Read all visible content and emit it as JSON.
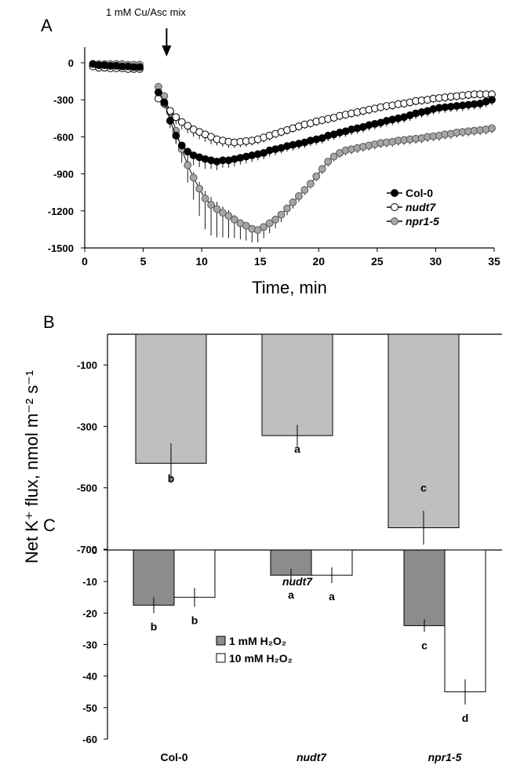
{
  "figure": {
    "y_axis_title": "Net K⁺ flux, nmol m⁻² s⁻¹",
    "colors": {
      "col0": "#000000",
      "nudt7": "#ffffff",
      "npr1": "#a6a6a6",
      "barB": "#bfbfbf",
      "bar1mM": "#8c8c8c",
      "bar10mM": "#ffffff"
    }
  },
  "chart_data": [
    {
      "panel": "A",
      "type": "line",
      "xlabel": "Time, min",
      "xlim": [
        0,
        35
      ],
      "ylim": [
        -1500,
        0
      ],
      "xticks": [
        "0",
        "5",
        "10",
        "15",
        "20",
        "25",
        "30",
        "35"
      ],
      "yticks": [
        "0",
        "-300",
        "-600",
        "-900",
        "-1200",
        "-1500"
      ],
      "annotation": "1 mM Cu/Asc mix",
      "annotation_x": 7,
      "legend_position": "right",
      "series": [
        {
          "name": "Col-0",
          "italic": false,
          "x": [
            0.7,
            1.2,
            1.7,
            2.2,
            2.7,
            3.2,
            3.7,
            4.2,
            4.7,
            6.3,
            6.8,
            7.3,
            7.8,
            8.3,
            8.8,
            9.3,
            9.8,
            10.3,
            10.8,
            11.3,
            11.8,
            12.3,
            12.8,
            13.3,
            13.8,
            14.3,
            14.8,
            15.3,
            15.8,
            16.3,
            16.8,
            17.3,
            17.8,
            18.3,
            18.8,
            19.3,
            19.8,
            20.3,
            20.8,
            21.3,
            21.8,
            22.3,
            22.8,
            23.3,
            23.8,
            24.3,
            24.8,
            25.3,
            25.8,
            26.3,
            26.8,
            27.3,
            27.8,
            28.3,
            28.8,
            29.3,
            29.8,
            30.3,
            30.8,
            31.3,
            31.8,
            32.3,
            32.8,
            33.3,
            33.8,
            34.3,
            34.8
          ],
          "y": [
            -10,
            -20,
            -20,
            -25,
            -25,
            -30,
            -30,
            -35,
            -35,
            -240,
            -320,
            -470,
            -590,
            -670,
            -720,
            -750,
            -765,
            -780,
            -790,
            -800,
            -790,
            -790,
            -780,
            -770,
            -760,
            -750,
            -740,
            -730,
            -710,
            -700,
            -690,
            -675,
            -665,
            -655,
            -645,
            -630,
            -620,
            -610,
            -590,
            -580,
            -565,
            -555,
            -540,
            -530,
            -520,
            -505,
            -495,
            -485,
            -470,
            -460,
            -450,
            -440,
            -425,
            -410,
            -400,
            -390,
            -375,
            -365,
            -360,
            -355,
            -350,
            -345,
            -340,
            -335,
            -330,
            -315,
            -300
          ],
          "err": [
            0,
            0,
            0,
            0,
            0,
            0,
            0,
            0,
            0,
            30,
            40,
            60,
            70,
            80,
            80,
            80,
            80,
            80,
            70,
            70,
            60,
            60,
            60,
            55,
            55,
            55,
            50,
            50,
            50,
            50,
            45,
            45,
            45,
            45,
            45,
            45,
            45,
            45,
            45,
            45,
            45,
            45,
            45,
            45,
            45,
            45,
            45,
            45,
            45,
            45,
            45,
            45,
            45,
            45,
            45,
            45,
            45,
            45,
            45,
            45,
            45,
            45,
            45,
            45,
            45,
            45,
            45
          ]
        },
        {
          "name": "nudt7",
          "italic": true,
          "x": [
            0.7,
            1.2,
            1.7,
            2.2,
            2.7,
            3.2,
            3.7,
            4.2,
            4.7,
            6.3,
            6.8,
            7.3,
            7.8,
            8.3,
            8.8,
            9.3,
            9.8,
            10.3,
            10.8,
            11.3,
            11.8,
            12.3,
            12.8,
            13.3,
            13.8,
            14.3,
            14.8,
            15.3,
            15.8,
            16.3,
            16.8,
            17.3,
            17.8,
            18.3,
            18.8,
            19.3,
            19.8,
            20.3,
            20.8,
            21.3,
            21.8,
            22.3,
            22.8,
            23.3,
            23.8,
            24.3,
            24.8,
            25.3,
            25.8,
            26.3,
            26.8,
            27.3,
            27.8,
            28.3,
            28.8,
            29.3,
            29.8,
            30.3,
            30.8,
            31.3,
            31.8,
            32.3,
            32.8,
            33.3,
            33.8,
            34.3,
            34.8
          ],
          "y": [
            -30,
            -40,
            -40,
            -45,
            -45,
            -45,
            -50,
            -50,
            -50,
            -290,
            -330,
            -390,
            -440,
            -480,
            -510,
            -540,
            -560,
            -580,
            -600,
            -620,
            -630,
            -640,
            -645,
            -640,
            -635,
            -630,
            -620,
            -605,
            -590,
            -575,
            -560,
            -545,
            -530,
            -515,
            -500,
            -490,
            -475,
            -465,
            -455,
            -445,
            -430,
            -420,
            -410,
            -400,
            -390,
            -380,
            -370,
            -360,
            -350,
            -345,
            -335,
            -330,
            -320,
            -310,
            -305,
            -300,
            -290,
            -285,
            -280,
            -275,
            -270,
            -265,
            -260,
            -255,
            -255,
            -255,
            -255
          ],
          "err": [
            0,
            0,
            0,
            0,
            0,
            0,
            0,
            0,
            0,
            30,
            40,
            50,
            60,
            60,
            60,
            60,
            60,
            60,
            60,
            50,
            50,
            50,
            45,
            45,
            45,
            40,
            40,
            40,
            40,
            35,
            35,
            35,
            35,
            35,
            35,
            35,
            35,
            35,
            35,
            35,
            35,
            35,
            35,
            35,
            35,
            35,
            35,
            35,
            35,
            35,
            35,
            35,
            35,
            35,
            35,
            35,
            35,
            35,
            35,
            35,
            35,
            35,
            35,
            35,
            35,
            35,
            35
          ]
        },
        {
          "name": "npr1-5",
          "italic": true,
          "x": [
            0.7,
            1.2,
            1.7,
            2.2,
            2.7,
            3.2,
            3.7,
            4.2,
            4.7,
            6.3,
            6.8,
            7.3,
            7.8,
            8.3,
            8.8,
            9.3,
            9.8,
            10.3,
            10.8,
            11.3,
            11.8,
            12.3,
            12.8,
            13.3,
            13.8,
            14.3,
            14.8,
            15.3,
            15.8,
            16.3,
            16.8,
            17.3,
            17.8,
            18.3,
            18.8,
            19.3,
            19.8,
            20.3,
            20.8,
            21.3,
            21.8,
            22.3,
            22.8,
            23.3,
            23.8,
            24.3,
            24.8,
            25.3,
            25.8,
            26.3,
            26.8,
            27.3,
            27.8,
            28.3,
            28.8,
            29.3,
            29.8,
            30.3,
            30.8,
            31.3,
            31.8,
            32.3,
            32.8,
            33.3,
            33.8,
            34.3,
            34.8
          ],
          "y": [
            -10,
            -10,
            -10,
            -10,
            -10,
            -10,
            -15,
            -15,
            -15,
            -195,
            -270,
            -400,
            -550,
            -700,
            -830,
            -930,
            -1020,
            -1100,
            -1150,
            -1185,
            -1215,
            -1240,
            -1270,
            -1300,
            -1320,
            -1345,
            -1355,
            -1330,
            -1300,
            -1270,
            -1230,
            -1180,
            -1130,
            -1080,
            -1030,
            -980,
            -920,
            -860,
            -800,
            -760,
            -730,
            -710,
            -700,
            -690,
            -680,
            -670,
            -660,
            -650,
            -645,
            -640,
            -630,
            -625,
            -620,
            -615,
            -610,
            -600,
            -595,
            -590,
            -580,
            -575,
            -565,
            -560,
            -555,
            -550,
            -545,
            -540,
            -530
          ],
          "err": [
            0,
            0,
            0,
            0,
            0,
            0,
            0,
            0,
            0,
            30,
            40,
            60,
            90,
            110,
            140,
            180,
            220,
            250,
            250,
            230,
            200,
            180,
            150,
            130,
            120,
            110,
            100,
            90,
            80,
            70,
            60,
            55,
            50,
            45,
            40,
            40,
            40,
            40,
            40,
            40,
            40,
            40,
            40,
            40,
            40,
            40,
            40,
            40,
            40,
            40,
            40,
            40,
            40,
            40,
            40,
            40,
            40,
            40,
            40,
            40,
            40,
            40,
            40,
            40,
            40,
            40,
            40
          ]
        }
      ]
    },
    {
      "panel": "B",
      "type": "bar",
      "categories": [
        "Col-0",
        "nudt7",
        "npr1-5"
      ],
      "category_italic": [
        false,
        true,
        true
      ],
      "values": [
        -420,
        -330,
        -630
      ],
      "err": [
        65,
        35,
        55
      ],
      "letters": [
        "b",
        "a",
        "c"
      ],
      "ylim": [
        -700,
        0
      ],
      "yticks": [
        "-100",
        "-300",
        "-500",
        "-700"
      ]
    },
    {
      "panel": "C",
      "type": "bar",
      "categories": [
        "Col-0",
        "nudt7",
        "npr1-5"
      ],
      "category_italic": [
        false,
        true,
        true
      ],
      "ylim": [
        -60,
        0
      ],
      "yticks": [
        "0",
        "-10",
        "-20",
        "-30",
        "-40",
        "-50",
        "-60"
      ],
      "legend": [
        "1 mM  H₂O₂",
        "10 mM  H₂O₂"
      ],
      "series": [
        {
          "name": "1 mM  H₂O₂",
          "values": [
            -17.5,
            -8,
            -24
          ],
          "err": [
            2.5,
            2,
            2
          ],
          "letters": [
            "b",
            "a",
            "c"
          ]
        },
        {
          "name": "10 mM  H₂O₂",
          "values": [
            -15,
            -8,
            -45
          ],
          "err": [
            3,
            2.5,
            4
          ],
          "letters": [
            "b",
            "a",
            "d"
          ]
        }
      ]
    }
  ]
}
